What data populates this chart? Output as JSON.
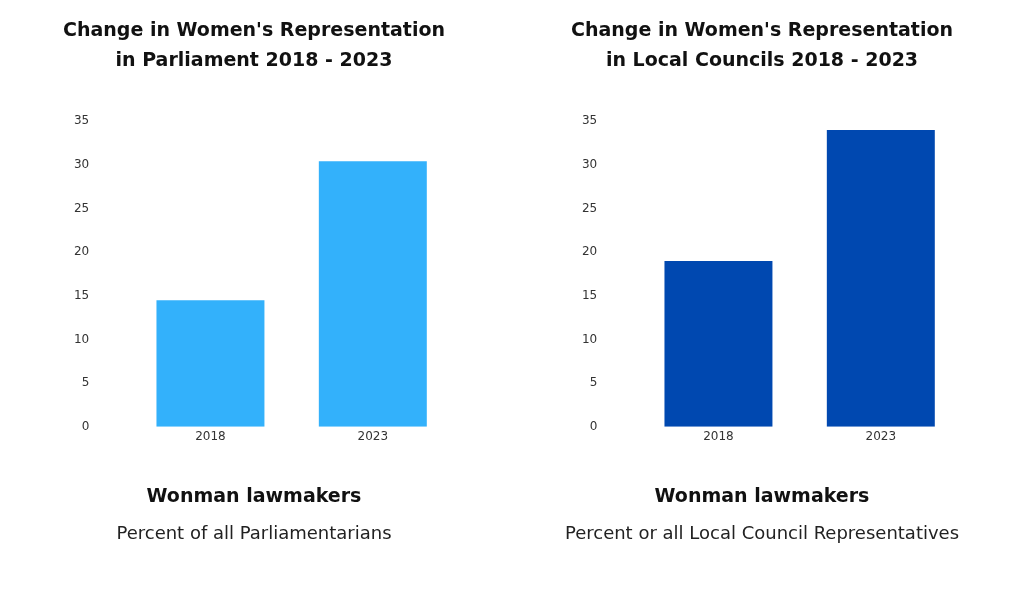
{
  "chart_data": [
    {
      "type": "bar",
      "title": "Change in Women's Representation\nin Parliament 2018 - 2023",
      "categories": [
        "2018",
        "2023"
      ],
      "values": [
        14.5,
        30.4
      ],
      "color": "#33b1fb",
      "ylim": [
        0,
        35
      ],
      "yticks": [
        0,
        5,
        10,
        15,
        20,
        25,
        30,
        35
      ],
      "grid": false,
      "xlabel": "Wonman lawmakers",
      "annotations": [
        "Percent of all Parliamentarians"
      ]
    },
    {
      "type": "bar",
      "title": "Change in Women's Representation\nin Local Councils 2018 - 2023",
      "categories": [
        "2018",
        "2023"
      ],
      "values": [
        19.0,
        34.0
      ],
      "color": "#0048b0",
      "ylim": [
        0,
        35
      ],
      "yticks": [
        0,
        5,
        10,
        15,
        20,
        25,
        30,
        35
      ],
      "grid": false,
      "xlabel": "Wonman lawmakers",
      "annotations": [
        "Percent or all Local Council Representatives"
      ]
    }
  ]
}
